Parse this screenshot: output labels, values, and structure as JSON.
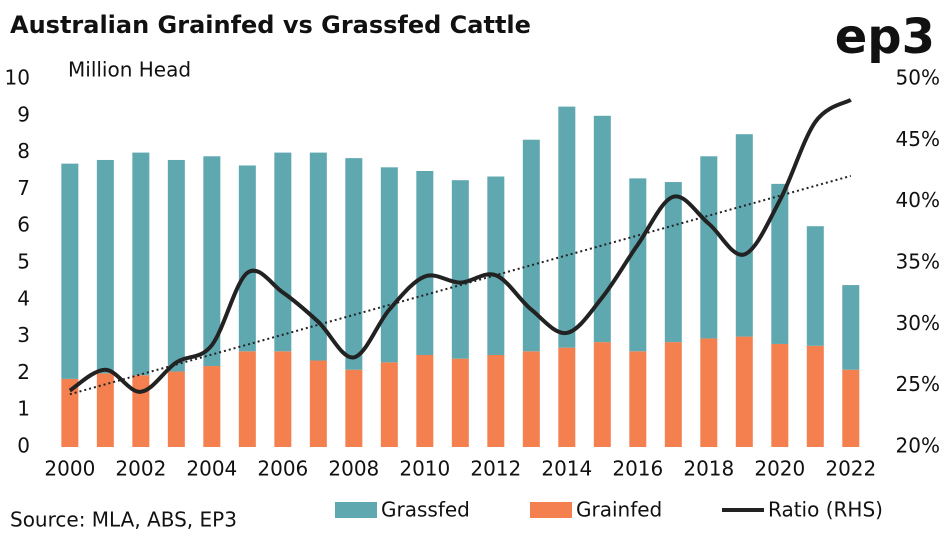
{
  "chart_data": {
    "type": "bar",
    "stacked": true,
    "title": "Australian Grainfed vs Grassfed Cattle",
    "logo": "ep3",
    "ylabel": "Million Head",
    "source": "Source: MLA, ABS, EP3",
    "x": [
      2000,
      2001,
      2002,
      2003,
      2004,
      2005,
      2006,
      2007,
      2008,
      2009,
      2010,
      2011,
      2012,
      2013,
      2014,
      2015,
      2016,
      2017,
      2018,
      2019,
      2020,
      2021,
      2022
    ],
    "xlim": [
      1999.3,
      2022.4
    ],
    "xticks": [
      2000,
      2002,
      2004,
      2006,
      2008,
      2010,
      2012,
      2014,
      2016,
      2018,
      2020,
      2022
    ],
    "ylim": [
      0,
      10
    ],
    "yticks": [
      0,
      1,
      2,
      3,
      4,
      5,
      6,
      7,
      8,
      9,
      10
    ],
    "y2lim": [
      20,
      50
    ],
    "y2ticks": [
      {
        "value": 20,
        "label": "20%"
      },
      {
        "value": 25,
        "label": "25%"
      },
      {
        "value": 30,
        "label": "30%"
      },
      {
        "value": 35,
        "label": "35%"
      },
      {
        "value": 40,
        "label": "40%"
      },
      {
        "value": 45,
        "label": "45%"
      },
      {
        "value": 50,
        "label": "50%"
      }
    ],
    "series": [
      {
        "name": "Grassfed",
        "color": "#5fa8b0",
        "type": "bar",
        "values": [
          5.85,
          5.8,
          6.05,
          5.75,
          5.7,
          5.05,
          5.4,
          5.65,
          5.75,
          5.3,
          5.0,
          4.85,
          4.85,
          5.75,
          6.55,
          6.15,
          4.7,
          4.35,
          4.95,
          5.5,
          4.35,
          3.25,
          2.3
        ]
      },
      {
        "name": "Grainfed",
        "color": "#f4804f",
        "type": "bar",
        "values": [
          1.85,
          2.0,
          1.95,
          2.05,
          2.2,
          2.6,
          2.6,
          2.35,
          2.1,
          2.3,
          2.5,
          2.4,
          2.5,
          2.6,
          2.7,
          2.85,
          2.6,
          2.85,
          2.95,
          3.0,
          2.8,
          2.75,
          2.1
        ]
      },
      {
        "name": "Ratio (RHS)",
        "color": "#222222",
        "type": "line",
        "axis": "y2",
        "values": [
          24.6,
          26.3,
          24.5,
          26.9,
          28.3,
          34.2,
          32.6,
          30.2,
          27.3,
          31.2,
          33.9,
          33.4,
          34.0,
          31.2,
          29.3,
          32.2,
          36.5,
          40.4,
          38.2,
          35.7,
          40.1,
          46.5,
          48.3
        ]
      }
    ],
    "trendline": {
      "axis": "y2",
      "values": [
        24.3,
        42.1
      ]
    }
  }
}
